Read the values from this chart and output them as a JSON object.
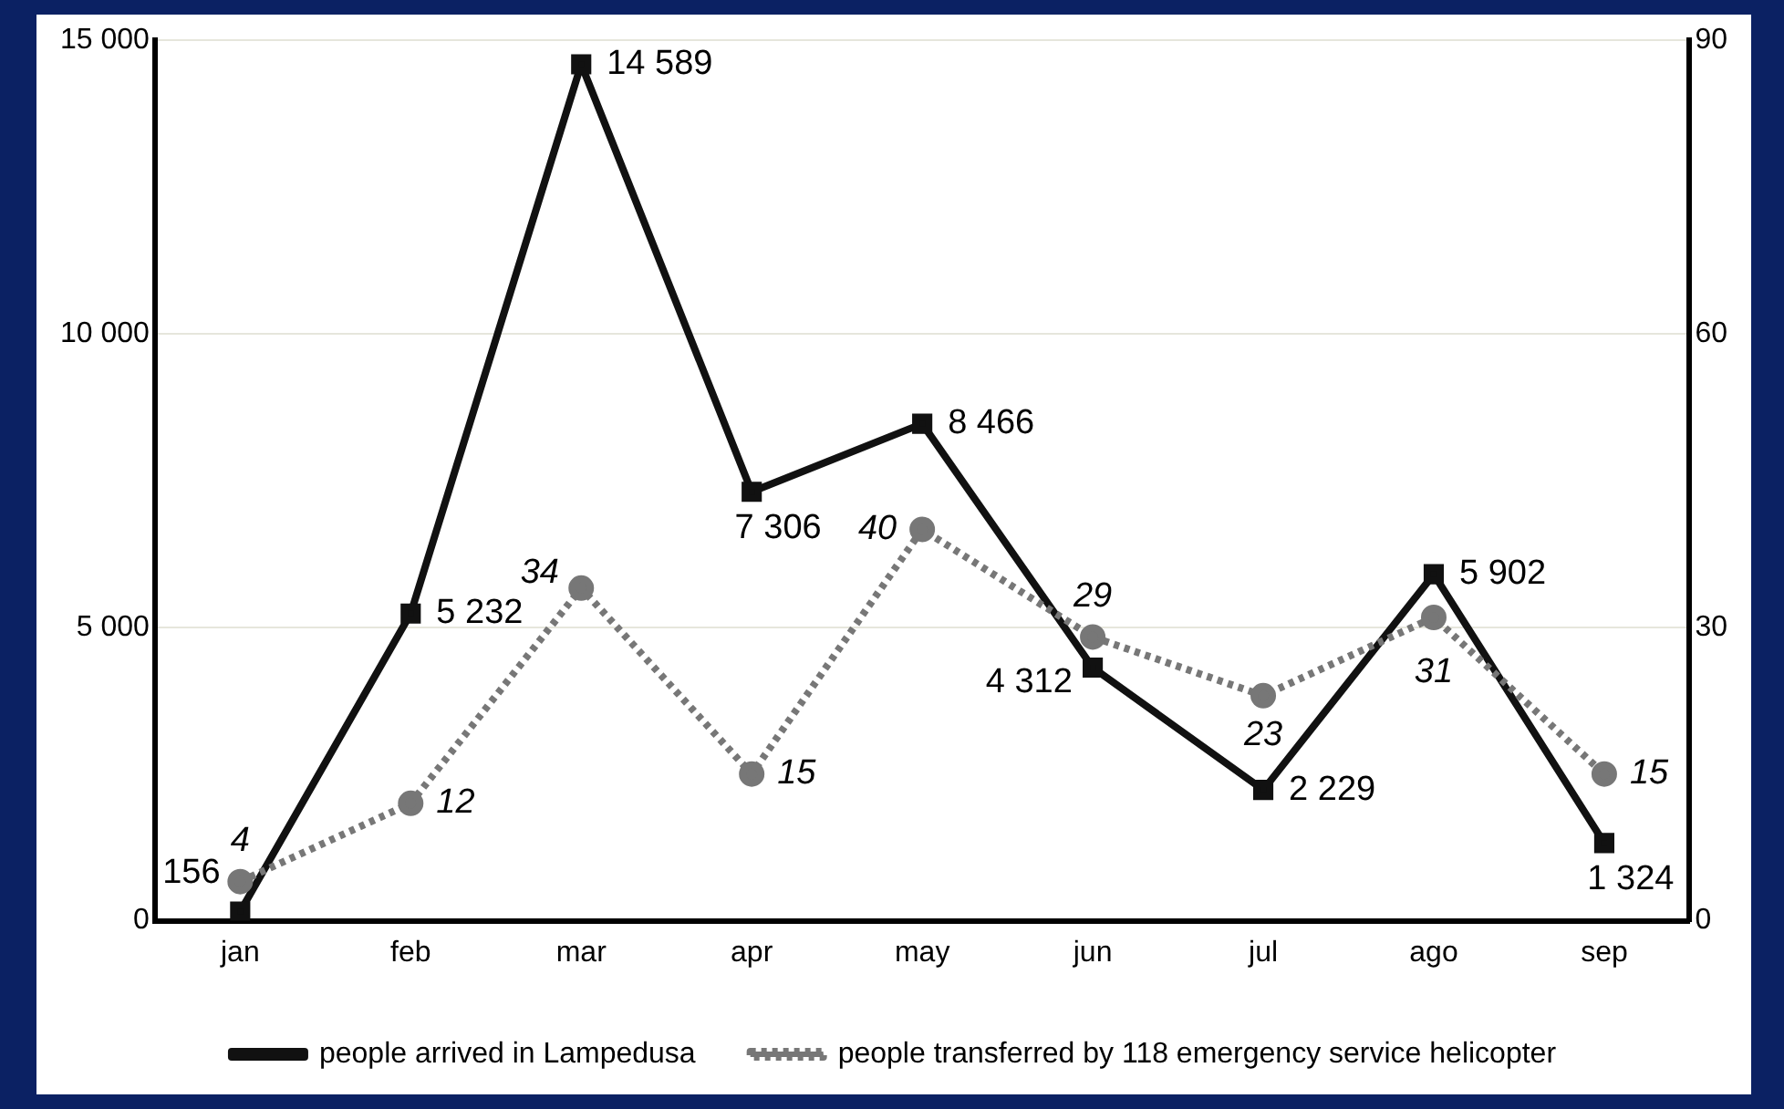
{
  "chart_data": {
    "type": "line",
    "categories": [
      "jan",
      "feb",
      "mar",
      "apr",
      "may",
      "jun",
      "jul",
      "ago",
      "sep"
    ],
    "series": [
      {
        "name": "people arrived in Lampedusa",
        "color": "#111111",
        "marker": "square",
        "line_style": "solid",
        "values": [
          156,
          5232,
          14589,
          7306,
          8466,
          4312,
          2229,
          5902,
          1324
        ],
        "value_labels": [
          "156",
          "5 232",
          "14 589",
          "7 306",
          "8 466",
          "4 312",
          "2 229",
          "5 902",
          "1 324"
        ]
      },
      {
        "name": "people transferred by 118 emergency service helicopter",
        "color": "#777777",
        "marker": "circle",
        "line_style": "dotted",
        "axis": "y2",
        "values": [
          4,
          12,
          34,
          15,
          40,
          29,
          23,
          31,
          15
        ],
        "value_labels": [
          "4",
          "12",
          "34",
          "15",
          "40",
          "29",
          "23",
          "31",
          "15"
        ]
      }
    ],
    "ylim": [
      0,
      15000
    ],
    "yticks": [
      0,
      {
        "value": 5000,
        "label": "5 000"
      },
      {
        "value": 10000,
        "label": "10 000"
      },
      {
        "value": 15000,
        "label": "15 000"
      }
    ],
    "y2lim": [
      0,
      90
    ],
    "y2ticks": [
      0,
      30,
      60,
      90
    ],
    "grid": "y",
    "legend": "bottom"
  }
}
